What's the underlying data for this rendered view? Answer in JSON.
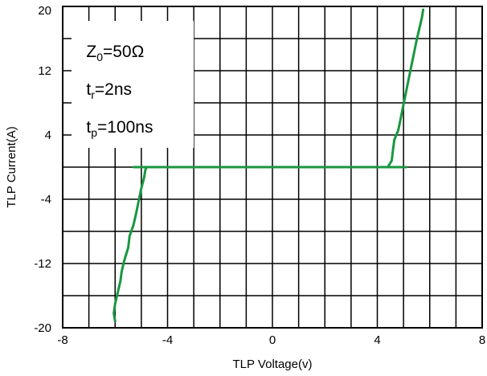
{
  "chart_data": {
    "type": "line",
    "title": "",
    "xlabel": "TLP Voltage(v)",
    "ylabel": "TLP Current(A)",
    "xlim": [
      -8,
      8
    ],
    "ylim": [
      -20,
      20
    ],
    "x_ticks": [
      "-8",
      "-4",
      "0",
      "4",
      "8"
    ],
    "y_ticks": [
      "-20",
      "-12",
      "-4",
      "4",
      "12",
      "20"
    ],
    "grid": true,
    "series_color": "#1a9641",
    "annotation": {
      "z0": {
        "main": "Z",
        "sub": "0",
        "rest": "=50Ω"
      },
      "tr": {
        "main": "t",
        "sub": "r",
        "rest": "=2ns"
      },
      "tp": {
        "main": "t",
        "sub": "p",
        "rest": "=100ns"
      }
    },
    "series": [
      {
        "values": [
          [
            -6.0,
            -19.2
          ],
          [
            -6.05,
            -18.2
          ],
          [
            -6.0,
            -17.0
          ],
          [
            -5.9,
            -15.6
          ],
          [
            -5.8,
            -14.2
          ],
          [
            -5.75,
            -13.0
          ],
          [
            -5.65,
            -11.6
          ],
          [
            -5.5,
            -10.0
          ],
          [
            -5.45,
            -8.6
          ],
          [
            -5.3,
            -7.2
          ],
          [
            -5.2,
            -5.8
          ],
          [
            -5.1,
            -4.2
          ],
          [
            -5.0,
            -2.6
          ],
          [
            -4.9,
            -1.4
          ],
          [
            -4.85,
            -0.4
          ],
          [
            -4.8,
            0
          ],
          [
            -5.3,
            0
          ],
          [
            5.1,
            0
          ],
          [
            4.4,
            0
          ],
          [
            4.55,
            0.8
          ],
          [
            4.6,
            2.2
          ],
          [
            4.65,
            3.4
          ],
          [
            4.8,
            4.6
          ],
          [
            4.9,
            6.2
          ],
          [
            5.0,
            7.8
          ],
          [
            5.1,
            9.4
          ],
          [
            5.2,
            11.0
          ],
          [
            5.3,
            12.6
          ],
          [
            5.4,
            14.2
          ],
          [
            5.5,
            15.8
          ],
          [
            5.6,
            17.2
          ],
          [
            5.7,
            18.6
          ],
          [
            5.75,
            19.6
          ]
        ]
      }
    ]
  }
}
